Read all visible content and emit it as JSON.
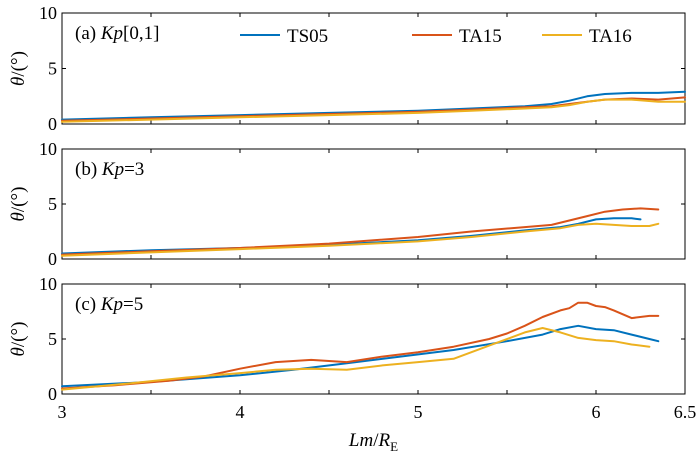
{
  "chart_data": [
    {
      "type": "line",
      "panel_label": "(a)",
      "title_var": "Kp",
      "title_rest": "[0,1]",
      "ylabel_theta": "θ",
      "ylabel_unit": "/(°)",
      "xlim": [
        3,
        6.5
      ],
      "ylim": [
        0,
        10
      ],
      "yticks": [
        "0",
        "5",
        "10"
      ],
      "legend": [
        "TS05",
        "TA15",
        "TA16"
      ],
      "series": [
        {
          "name": "TS05",
          "color": "#0072BD",
          "x": [
            3.0,
            3.5,
            4.0,
            4.5,
            5.0,
            5.3,
            5.6,
            5.75,
            5.85,
            5.95,
            6.05,
            6.2,
            6.35,
            6.5
          ],
          "y": [
            0.4,
            0.6,
            0.8,
            1.0,
            1.2,
            1.4,
            1.6,
            1.8,
            2.1,
            2.5,
            2.7,
            2.8,
            2.8,
            2.9
          ]
        },
        {
          "name": "TA15",
          "color": "#D95319",
          "x": [
            3.0,
            3.5,
            4.0,
            4.5,
            5.0,
            5.3,
            5.6,
            5.75,
            5.85,
            5.95,
            6.05,
            6.2,
            6.35,
            6.5
          ],
          "y": [
            0.3,
            0.5,
            0.7,
            0.9,
            1.1,
            1.3,
            1.5,
            1.6,
            1.8,
            2.0,
            2.2,
            2.3,
            2.2,
            2.4
          ]
        },
        {
          "name": "TA16",
          "color": "#EDB120",
          "x": [
            3.0,
            3.5,
            4.0,
            4.5,
            5.0,
            5.3,
            5.6,
            5.75,
            5.85,
            5.95,
            6.05,
            6.2,
            6.35,
            6.5
          ],
          "y": [
            0.2,
            0.4,
            0.6,
            0.8,
            1.0,
            1.2,
            1.4,
            1.5,
            1.7,
            2.0,
            2.2,
            2.2,
            2.0,
            2.0
          ]
        }
      ]
    },
    {
      "type": "line",
      "panel_label": "(b)",
      "title_var": "Kp",
      "title_rest": "=3",
      "ylabel_theta": "θ",
      "ylabel_unit": "/(°)",
      "xlim": [
        3,
        6.5
      ],
      "ylim": [
        0,
        10
      ],
      "yticks": [
        "0",
        "5",
        "10"
      ],
      "series": [
        {
          "name": "TS05",
          "color": "#0072BD",
          "x": [
            3.0,
            3.5,
            4.0,
            4.5,
            5.0,
            5.3,
            5.6,
            5.8,
            5.9,
            6.0,
            6.1,
            6.2,
            6.25
          ],
          "y": [
            0.5,
            0.8,
            1.0,
            1.3,
            1.7,
            2.1,
            2.6,
            2.9,
            3.2,
            3.6,
            3.7,
            3.7,
            3.6
          ]
        },
        {
          "name": "TA15",
          "color": "#D95319",
          "x": [
            3.0,
            3.5,
            4.0,
            4.5,
            5.0,
            5.3,
            5.6,
            5.75,
            5.85,
            5.95,
            6.05,
            6.15,
            6.25,
            6.35
          ],
          "y": [
            0.4,
            0.7,
            1.0,
            1.4,
            2.0,
            2.5,
            2.9,
            3.1,
            3.5,
            3.9,
            4.3,
            4.5,
            4.6,
            4.5
          ]
        },
        {
          "name": "TA16",
          "color": "#EDB120",
          "x": [
            3.0,
            3.5,
            4.0,
            4.5,
            5.0,
            5.3,
            5.6,
            5.8,
            5.9,
            6.0,
            6.1,
            6.2,
            6.3,
            6.35
          ],
          "y": [
            0.3,
            0.6,
            0.9,
            1.2,
            1.6,
            2.0,
            2.5,
            2.8,
            3.1,
            3.2,
            3.1,
            3.0,
            3.0,
            3.2
          ]
        }
      ]
    },
    {
      "type": "line",
      "panel_label": "(c)",
      "title_var": "Kp",
      "title_rest": "=5",
      "ylabel_theta": "θ",
      "ylabel_unit": "/(°)",
      "xlabel_var": "Lm",
      "xlabel_sep": "/",
      "xlabel_sub_main": "R",
      "xlabel_sub": "E",
      "xlim": [
        3,
        6.5
      ],
      "ylim": [
        0,
        10
      ],
      "yticks": [
        "0",
        "5",
        "10"
      ],
      "xticks": [
        "3",
        "4",
        "5",
        "6",
        "6.5"
      ],
      "series": [
        {
          "name": "TS05",
          "color": "#0072BD",
          "x": [
            3.0,
            3.5,
            4.0,
            4.3,
            4.6,
            4.9,
            5.2,
            5.5,
            5.7,
            5.8,
            5.9,
            6.0,
            6.1,
            6.2,
            6.3,
            6.35
          ],
          "y": [
            0.7,
            1.1,
            1.7,
            2.2,
            2.8,
            3.4,
            4.0,
            4.8,
            5.4,
            5.9,
            6.2,
            5.9,
            5.8,
            5.4,
            5.0,
            4.8
          ]
        },
        {
          "name": "TA15",
          "color": "#D95319",
          "x": [
            3.0,
            3.3,
            3.6,
            3.8,
            4.0,
            4.2,
            4.4,
            4.6,
            4.8,
            5.0,
            5.2,
            5.4,
            5.5,
            5.6,
            5.7,
            5.8,
            5.85,
            5.9,
            5.95,
            6.0,
            6.05,
            6.1,
            6.2,
            6.3,
            6.35
          ],
          "y": [
            0.5,
            0.8,
            1.2,
            1.6,
            2.3,
            2.9,
            3.1,
            2.9,
            3.4,
            3.8,
            4.3,
            5.0,
            5.5,
            6.2,
            7.0,
            7.6,
            7.8,
            8.3,
            8.3,
            8.0,
            7.9,
            7.6,
            6.9,
            7.1,
            7.1
          ]
        },
        {
          "name": "TA16",
          "color": "#EDB120",
          "x": [
            3.0,
            3.4,
            3.7,
            4.0,
            4.2,
            4.4,
            4.6,
            4.8,
            5.0,
            5.2,
            5.4,
            5.6,
            5.7,
            5.8,
            5.9,
            6.0,
            6.1,
            6.2,
            6.3
          ],
          "y": [
            0.4,
            1.0,
            1.5,
            1.9,
            2.2,
            2.3,
            2.2,
            2.6,
            2.9,
            3.2,
            4.4,
            5.6,
            6.0,
            5.6,
            5.1,
            4.9,
            4.8,
            4.5,
            4.3
          ]
        }
      ]
    }
  ]
}
